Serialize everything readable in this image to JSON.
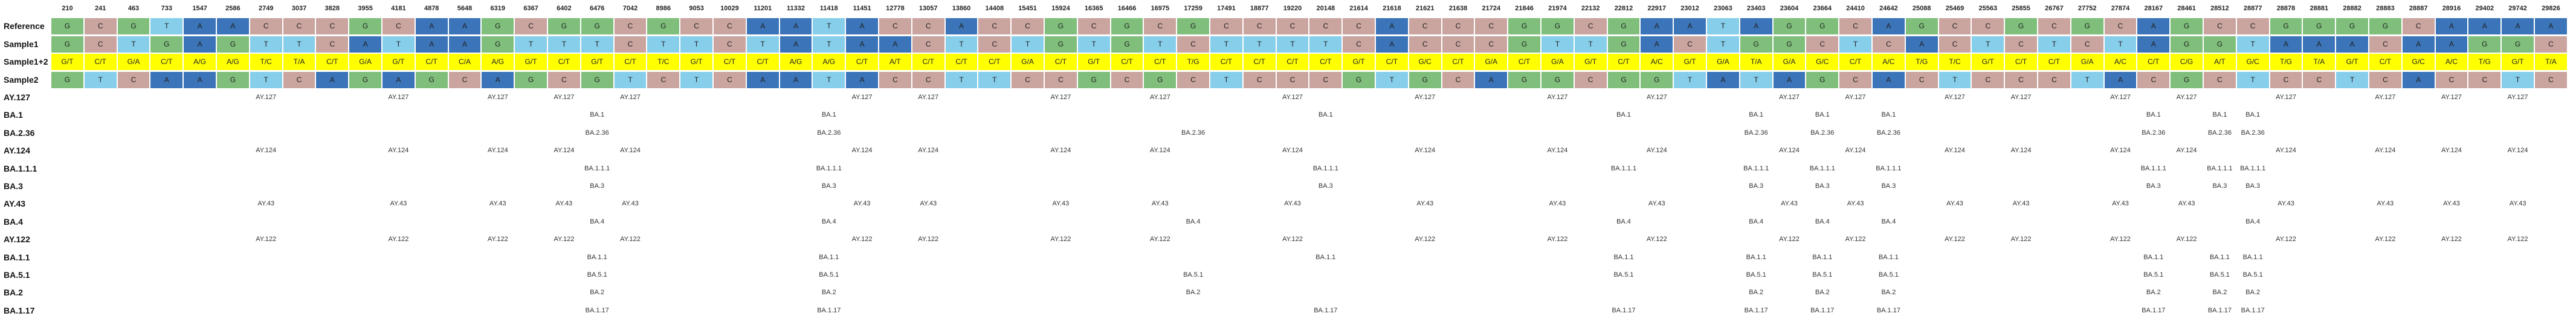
{
  "positions": [
    "210",
    "241",
    "463",
    "733",
    "1547",
    "2586",
    "2749",
    "3037",
    "3828",
    "3955",
    "4181",
    "4878",
    "5648",
    "6319",
    "6367",
    "6402",
    "6476",
    "7042",
    "8986",
    "9053",
    "10029",
    "11201",
    "11332",
    "11418",
    "11451",
    "12778",
    "13057",
    "13860",
    "14408",
    "15451",
    "15924",
    "16365",
    "16466",
    "16975",
    "17259",
    "17491",
    "18877",
    "19220",
    "20148",
    "21614",
    "21618",
    "21621",
    "21638",
    "21724",
    "21846",
    "21974",
    "22132",
    "22812",
    "22917",
    "23012",
    "23063",
    "23403",
    "23604",
    "23664",
    "24410",
    "24642",
    "25088",
    "25469",
    "25563",
    "25855",
    "26767",
    "27752",
    "27874",
    "28167",
    "28461",
    "28512",
    "28877",
    "28878",
    "28881",
    "28882",
    "28883",
    "28887",
    "28916",
    "29402",
    "29742",
    "29826"
  ],
  "colors": {
    "A": "#3b74b8",
    "C": "#caa49f",
    "G": "#7fbf7b",
    "T": "#87ceeb",
    "mixed": "#ffff00",
    "red": "#cc3333",
    "empty": "#ffffff"
  },
  "sequence_rows": [
    {
      "label": "Reference",
      "cells": [
        "G",
        "C",
        "G",
        "T",
        "A",
        "A",
        "C",
        "C",
        "C",
        "G",
        "C",
        "A",
        "A",
        "G",
        "C",
        "G",
        "G",
        "C",
        "G",
        "C",
        "C",
        "A",
        "A",
        "T",
        "A",
        "C",
        "C",
        "A",
        "C",
        "C",
        "G",
        "C",
        "G",
        "C",
        "G",
        "C",
        "C",
        "C",
        "C",
        "C",
        "A",
        "C",
        "C",
        "C",
        "G",
        "G",
        "C",
        "G",
        "A",
        "A",
        "T",
        "A",
        "G",
        "G",
        "C",
        "A",
        "G",
        "C",
        "C",
        "G",
        "C",
        "G",
        "C",
        "A",
        "G",
        "C",
        "C",
        "G",
        "G",
        "G",
        "G",
        "C",
        "A",
        "A",
        "A",
        "A"
      ]
    },
    {
      "label": "Sample1",
      "cells": [
        "G",
        "C",
        "T",
        "G",
        "A",
        "G",
        "T",
        "T",
        "C",
        "A",
        "T",
        "A",
        "A",
        "G",
        "T",
        "T",
        "T",
        "C",
        "T",
        "T",
        "C",
        "T",
        "A",
        "T",
        "A",
        "A",
        "C",
        "T",
        "C",
        "T",
        "G",
        "T",
        "G",
        "T",
        "C",
        "T",
        "T",
        "T",
        "T",
        "C",
        "A",
        "C",
        "C",
        "C",
        "G",
        "T",
        "T",
        "G",
        "A",
        "C",
        "T",
        "G",
        "G",
        "C",
        "T",
        "C",
        "A",
        "C",
        "T",
        "C",
        "T",
        "C",
        "T",
        "A",
        "G",
        "G",
        "T",
        "A",
        "A",
        "A",
        "C",
        "A",
        "A",
        "G",
        "G",
        "C"
      ]
    },
    {
      "label": "Sample1+2",
      "cells": [
        "G/T",
        "C/T",
        "G/A",
        "C/T",
        "A/G",
        "A/G",
        "T/C",
        "T/A",
        "C/T",
        "G/A",
        "G/T",
        "C/T",
        "C/A",
        "A/G",
        "G/T",
        "C/T",
        "G/T",
        "C/T",
        "T/C",
        "G/T",
        "C/T",
        "C/T",
        "A/G",
        "A/G",
        "C/T",
        "A/T",
        "C/T",
        "C/T",
        "C/T",
        "G/A",
        "C/T",
        "G/T",
        "C/T",
        "C/T",
        "T/G",
        "C/T",
        "C/T",
        "C/T",
        "C/T",
        "G/T",
        "C/T",
        "G/C",
        "C/T",
        "G/A",
        "C/T",
        "G/A",
        "G/T",
        "C/T",
        "A/C",
        "G/T",
        "G/A",
        "T/A",
        "G/A",
        "G/C",
        "C/T",
        "A/C",
        "T/G",
        "T/C",
        "G/T",
        "C/T",
        "C/T",
        "G/A",
        "A/C",
        "C/T",
        "C/G",
        "A/T",
        "G/C",
        "T/G",
        "T/A",
        "G/T",
        "C/T",
        "G/C",
        "A/C",
        "T/G",
        "G/T",
        "T/A"
      ]
    },
    {
      "label": "Sample2",
      "cells": [
        "G",
        "T",
        "C",
        "A",
        "A",
        "G",
        "T",
        "C",
        "A",
        "G",
        "A",
        "G",
        "C",
        "A",
        "G",
        "C",
        "G",
        "T",
        "C",
        "T",
        "C",
        "A",
        "A",
        "T",
        "A",
        "C",
        "C",
        "T",
        "T",
        "C",
        "C",
        "G",
        "C",
        "G",
        "C",
        "T",
        "C",
        "C",
        "C",
        "G",
        "T",
        "G",
        "C",
        "A",
        "G",
        "G",
        "C",
        "G",
        "G",
        "T",
        "A",
        "T",
        "A",
        "G",
        "C",
        "A",
        "C",
        "T",
        "C",
        "C",
        "C",
        "T",
        "A",
        "C",
        "G",
        "C",
        "T",
        "C",
        "C",
        "T",
        "C",
        "A",
        "C",
        "C",
        "T",
        "C"
      ]
    }
  ],
  "lineages": [
    {
      "label": "AY.127",
      "entries": [
        [
          6,
          "AY.127"
        ],
        [
          10,
          "AY.127"
        ],
        [
          13,
          "AY.127"
        ],
        [
          15,
          "AY.127"
        ],
        [
          17,
          "AY.127"
        ],
        [
          24,
          "AY.127"
        ],
        [
          26,
          "AY.127"
        ],
        [
          30,
          "AY.127"
        ],
        [
          33,
          "AY.127"
        ],
        [
          37,
          "AY.127"
        ],
        [
          41,
          "AY.127"
        ],
        [
          45,
          "AY.127"
        ],
        [
          48,
          "AY.127"
        ],
        [
          52,
          "AY.127"
        ],
        [
          54,
          "AY.127"
        ],
        [
          57,
          "AY.127"
        ],
        [
          59,
          "AY.127"
        ],
        [
          62,
          "AY.127"
        ],
        [
          64,
          "AY.127"
        ],
        [
          67,
          "AY.127"
        ],
        [
          70,
          "AY.127"
        ],
        [
          72,
          "AY.127"
        ],
        [
          74,
          "AY.127"
        ]
      ]
    },
    {
      "label": "BA.1",
      "entries": [
        [
          16,
          "BA.1"
        ],
        [
          23,
          "BA.1"
        ],
        [
          38,
          "BA.1"
        ],
        [
          47,
          "BA.1"
        ],
        [
          51,
          "BA.1"
        ],
        [
          53,
          "BA.1"
        ],
        [
          55,
          "BA.1"
        ],
        [
          63,
          "BA.1"
        ],
        [
          65,
          "BA.1"
        ],
        [
          66,
          "BA.1"
        ]
      ]
    },
    {
      "label": "BA.2.36",
      "entries": [
        [
          16,
          "BA.2.36"
        ],
        [
          23,
          "BA.2.36"
        ],
        [
          34,
          "BA.2.36"
        ],
        [
          51,
          "BA.2.36"
        ],
        [
          53,
          "BA.2.36"
        ],
        [
          55,
          "BA.2.36"
        ],
        [
          63,
          "BA.2.36"
        ],
        [
          65,
          "BA.2.36"
        ],
        [
          66,
          "BA.2.36"
        ]
      ]
    },
    {
      "label": "AY.124",
      "entries": [
        [
          6,
          "AY.124"
        ],
        [
          10,
          "AY.124"
        ],
        [
          13,
          "AY.124"
        ],
        [
          15,
          "AY.124"
        ],
        [
          17,
          "AY.124"
        ],
        [
          24,
          "AY.124"
        ],
        [
          26,
          "AY.124"
        ],
        [
          30,
          "AY.124"
        ],
        [
          33,
          "AY.124"
        ],
        [
          37,
          "AY.124"
        ],
        [
          41,
          "AY.124"
        ],
        [
          45,
          "AY.124"
        ],
        [
          48,
          "AY.124"
        ],
        [
          52,
          "AY.124"
        ],
        [
          54,
          "AY.124"
        ],
        [
          57,
          "AY.124"
        ],
        [
          59,
          "AY.124"
        ],
        [
          62,
          "AY.124"
        ],
        [
          64,
          "AY.124"
        ],
        [
          67,
          "AY.124"
        ],
        [
          70,
          "AY.124"
        ],
        [
          72,
          "AY.124"
        ],
        [
          74,
          "AY.124"
        ]
      ]
    },
    {
      "label": "BA.1.1.1",
      "entries": [
        [
          16,
          "BA.1.1.1"
        ],
        [
          23,
          "BA.1.1.1"
        ],
        [
          38,
          "BA.1.1.1"
        ],
        [
          47,
          "BA.1.1.1"
        ],
        [
          51,
          "BA.1.1.1"
        ],
        [
          53,
          "BA.1.1.1"
        ],
        [
          55,
          "BA.1.1.1"
        ],
        [
          63,
          "BA.1.1.1"
        ],
        [
          65,
          "BA.1.1.1"
        ],
        [
          66,
          "BA.1.1.1"
        ]
      ]
    },
    {
      "label": "BA.3",
      "entries": [
        [
          16,
          "BA.3"
        ],
        [
          23,
          "BA.3"
        ],
        [
          38,
          "BA.3"
        ],
        [
          51,
          "BA.3"
        ],
        [
          53,
          "BA.3"
        ],
        [
          55,
          "BA.3"
        ],
        [
          63,
          "BA.3"
        ],
        [
          65,
          "BA.3"
        ],
        [
          66,
          "BA.3"
        ]
      ]
    },
    {
      "label": "AY.43",
      "entries": [
        [
          6,
          "AY.43"
        ],
        [
          10,
          "AY.43"
        ],
        [
          13,
          "AY.43"
        ],
        [
          15,
          "AY.43"
        ],
        [
          17,
          "AY.43"
        ],
        [
          24,
          "AY.43"
        ],
        [
          26,
          "AY.43"
        ],
        [
          30,
          "AY.43"
        ],
        [
          33,
          "AY.43"
        ],
        [
          37,
          "AY.43"
        ],
        [
          41,
          "AY.43"
        ],
        [
          45,
          "AY.43"
        ],
        [
          48,
          "AY.43"
        ],
        [
          52,
          "AY.43"
        ],
        [
          54,
          "AY.43"
        ],
        [
          57,
          "AY.43"
        ],
        [
          59,
          "AY.43"
        ],
        [
          62,
          "AY.43"
        ],
        [
          64,
          "AY.43"
        ],
        [
          67,
          "AY.43"
        ],
        [
          70,
          "AY.43"
        ],
        [
          72,
          "AY.43"
        ],
        [
          74,
          "AY.43"
        ]
      ]
    },
    {
      "label": "BA.4",
      "entries": [
        [
          16,
          "BA.4"
        ],
        [
          23,
          "BA.4"
        ],
        [
          34,
          "BA.4"
        ],
        [
          47,
          "BA.4"
        ],
        [
          51,
          "BA.4"
        ],
        [
          53,
          "BA.4"
        ],
        [
          55,
          "BA.4"
        ],
        [
          66,
          "BA.4"
        ]
      ]
    },
    {
      "label": "AY.122",
      "entries": [
        [
          6,
          "AY.122"
        ],
        [
          10,
          "AY.122"
        ],
        [
          13,
          "AY.122"
        ],
        [
          15,
          "AY.122"
        ],
        [
          17,
          "AY.122"
        ],
        [
          24,
          "AY.122"
        ],
        [
          26,
          "AY.122"
        ],
        [
          30,
          "AY.122"
        ],
        [
          33,
          "AY.122"
        ],
        [
          37,
          "AY.122"
        ],
        [
          41,
          "AY.122"
        ],
        [
          45,
          "AY.122"
        ],
        [
          48,
          "AY.122"
        ],
        [
          52,
          "AY.122"
        ],
        [
          54,
          "AY.122"
        ],
        [
          57,
          "AY.122"
        ],
        [
          59,
          "AY.122"
        ],
        [
          62,
          "AY.122"
        ],
        [
          64,
          "AY.122"
        ],
        [
          67,
          "AY.122"
        ],
        [
          70,
          "AY.122"
        ],
        [
          72,
          "AY.122"
        ],
        [
          74,
          "AY.122"
        ]
      ]
    },
    {
      "label": "BA.1.1",
      "entries": [
        [
          16,
          "BA.1.1"
        ],
        [
          23,
          "BA.1.1"
        ],
        [
          38,
          "BA.1.1"
        ],
        [
          47,
          "BA.1.1"
        ],
        [
          51,
          "BA.1.1"
        ],
        [
          53,
          "BA.1.1"
        ],
        [
          55,
          "BA.1.1"
        ],
        [
          63,
          "BA.1.1"
        ],
        [
          65,
          "BA.1.1"
        ],
        [
          66,
          "BA.1.1"
        ]
      ]
    },
    {
      "label": "BA.5.1",
      "entries": [
        [
          16,
          "BA.5.1"
        ],
        [
          23,
          "BA.5.1"
        ],
        [
          34,
          "BA.5.1"
        ],
        [
          47,
          "BA.5.1"
        ],
        [
          51,
          "BA.5.1"
        ],
        [
          53,
          "BA.5.1"
        ],
        [
          55,
          "BA.5.1"
        ],
        [
          63,
          "BA.5.1"
        ],
        [
          65,
          "BA.5.1"
        ],
        [
          66,
          "BA.5.1"
        ]
      ]
    },
    {
      "label": "BA.2",
      "entries": [
        [
          16,
          "BA.2"
        ],
        [
          23,
          "BA.2"
        ],
        [
          34,
          "BA.2"
        ],
        [
          51,
          "BA.2"
        ],
        [
          53,
          "BA.2"
        ],
        [
          55,
          "BA.2"
        ],
        [
          63,
          "BA.2"
        ],
        [
          65,
          "BA.2"
        ],
        [
          66,
          "BA.2"
        ]
      ]
    },
    {
      "label": "BA.1.17",
      "entries": [
        [
          16,
          "BA.1.17"
        ],
        [
          23,
          "BA.1.17"
        ],
        [
          38,
          "BA.1.17"
        ],
        [
          47,
          "BA.1.17"
        ],
        [
          51,
          "BA.1.17"
        ],
        [
          53,
          "BA.1.17"
        ],
        [
          55,
          "BA.1.17"
        ],
        [
          63,
          "BA.1.17"
        ],
        [
          65,
          "BA.1.17"
        ],
        [
          66,
          "BA.1.17"
        ]
      ]
    }
  ]
}
